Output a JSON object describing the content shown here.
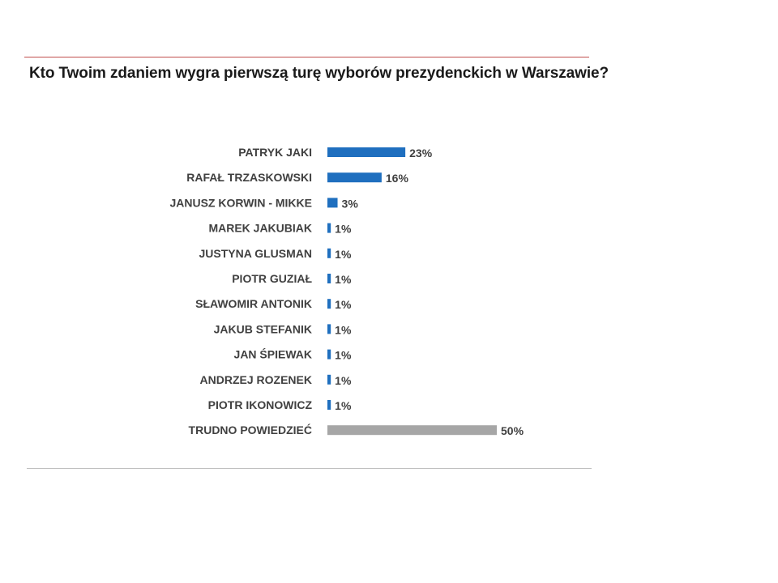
{
  "title": "Kto Twoim zdaniem wygra pierwszą turę wyborów prezydenckich w Warszawie?",
  "chart_data": {
    "type": "bar",
    "orientation": "horizontal",
    "title": "Kto Twoim zdaniem wygra pierwszą turę wyborów prezydenckich w Warszawie?",
    "categories": [
      "PATRYK JAKI",
      "RAFAŁ TRZASKOWSKI",
      "JANUSZ KORWIN - MIKKE",
      "MAREK JAKUBIAK",
      "JUSTYNA GLUSMAN",
      "PIOTR GUZIAŁ",
      "SŁAWOMIR ANTONIK",
      "JAKUB STEFANIK",
      "JAN ŚPIEWAK",
      "ANDRZEJ ROZENEK",
      "PIOTR IKONOWICZ",
      "TRUDNO POWIEDZIEĆ"
    ],
    "values": [
      23,
      16,
      3,
      1,
      1,
      1,
      1,
      1,
      1,
      1,
      1,
      50
    ],
    "value_labels": [
      "23%",
      "16%",
      "3%",
      "1%",
      "1%",
      "1%",
      "1%",
      "1%",
      "1%",
      "1%",
      "1%",
      "50%"
    ],
    "unit": "%",
    "colors": {
      "primary": "#1f6fbf",
      "neutral": "#a6a6a6",
      "top_rule": "#c0504d",
      "bottom_rule": "#bfbfbf"
    },
    "highlight_neutral_category": "TRUDNO POWIEDZIEĆ",
    "xlim": [
      0,
      50
    ],
    "grid": false,
    "legend": "none"
  }
}
